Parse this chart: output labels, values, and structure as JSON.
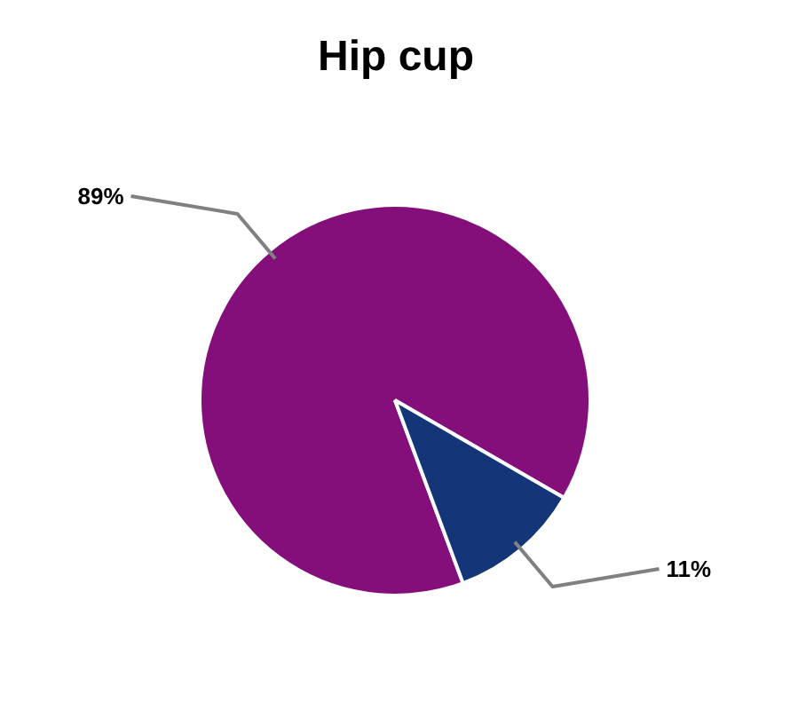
{
  "chart_data": {
    "type": "pie",
    "title": "Hip cup",
    "categories": [
      null,
      null
    ],
    "values": [
      89,
      11
    ],
    "colors": [
      "#850f7a",
      "#143679"
    ],
    "value_labels": [
      "89%",
      "11%"
    ]
  }
}
